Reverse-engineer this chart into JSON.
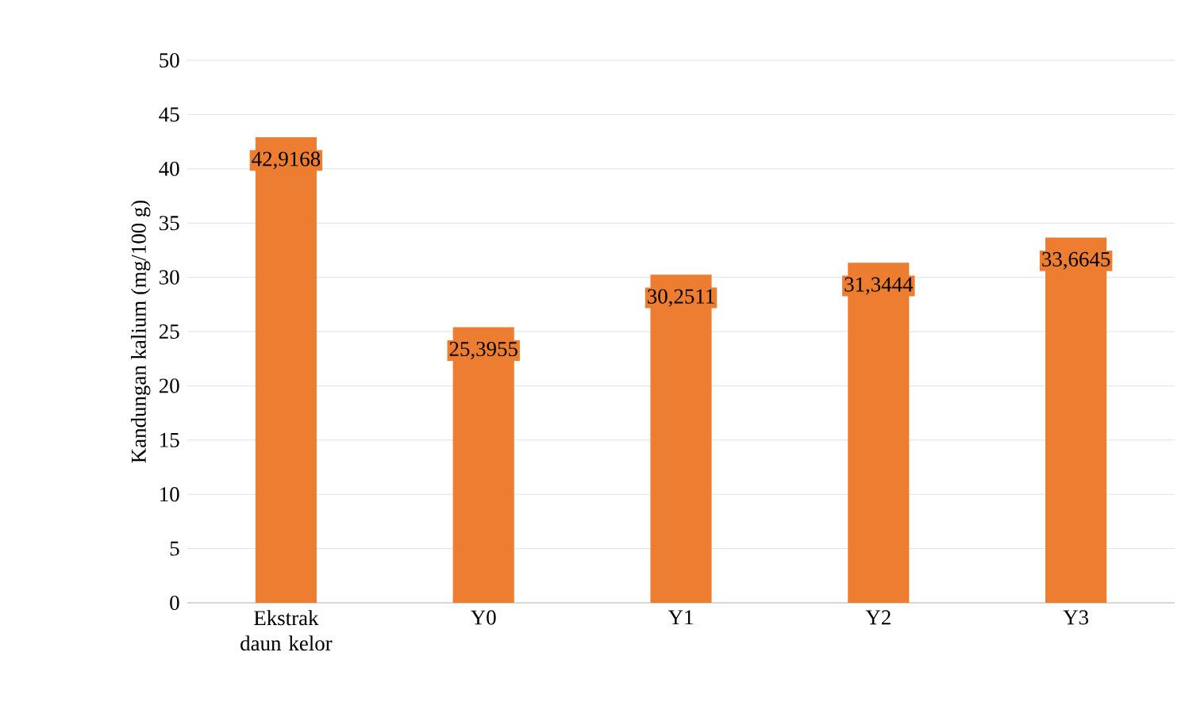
{
  "chart_data": {
    "type": "bar",
    "ylabel": "Kandungan kalium  (mg/100 g)",
    "categories": [
      "Ekstrak daun kelor",
      "Y0",
      "Y1",
      "Y2",
      "Y3"
    ],
    "values": [
      42.9168,
      25.3955,
      30.2511,
      31.3444,
      33.6645
    ],
    "value_labels": [
      "42,9168",
      "25,3955",
      "30,2511",
      "31,3444",
      "33,6645"
    ],
    "color": "#ed7d31",
    "ylim": [
      0,
      50
    ],
    "yticks": [
      0,
      5,
      10,
      15,
      20,
      25,
      30,
      35,
      40,
      45,
      50
    ],
    "grid": "y"
  }
}
